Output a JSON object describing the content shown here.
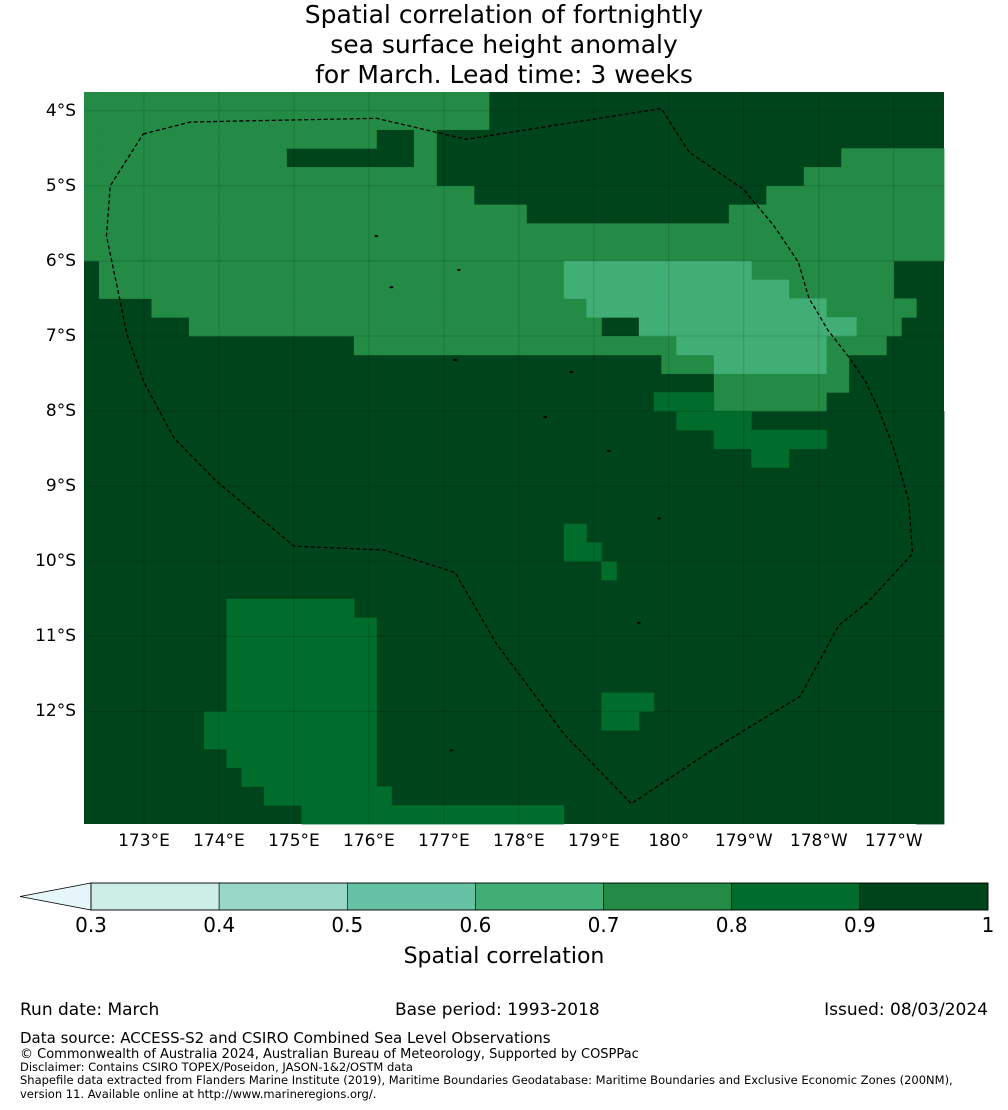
{
  "title_lines": [
    "Spatial correlation of fortnightly",
    "sea surface height anomaly",
    "for March. Lead time: 3 weeks"
  ],
  "map": {
    "lat_labels": [
      "4°S",
      "5°S",
      "6°S",
      "7°S",
      "8°S",
      "9°S",
      "10°S",
      "11°S",
      "12°S"
    ],
    "lon_labels": [
      "173°E",
      "174°E",
      "175°E",
      "176°E",
      "177°E",
      "178°E",
      "179°E",
      "180°",
      "179°W",
      "178°W",
      "177°W"
    ],
    "lat_range": [
      -13.5,
      -3.75
    ],
    "lon_range": [
      172.2,
      183.67
    ],
    "boundary_style": "black dashed line",
    "eez_boundary": [
      [
        172.99,
        -4.31
      ],
      [
        173.62,
        -4.15
      ],
      [
        176.1,
        -4.1
      ],
      [
        177.3,
        -4.38
      ],
      [
        179.9,
        -3.97
      ],
      [
        180.27,
        -4.55
      ],
      [
        181.0,
        -5.05
      ],
      [
        181.4,
        -5.53
      ],
      [
        181.73,
        -6.02
      ],
      [
        181.87,
        -6.5
      ],
      [
        181.95,
        -6.63
      ],
      [
        182.12,
        -6.92
      ],
      [
        182.4,
        -7.28
      ],
      [
        182.62,
        -7.6
      ],
      [
        182.8,
        -7.98
      ],
      [
        183.0,
        -8.5
      ],
      [
        183.2,
        -9.2
      ],
      [
        183.25,
        -9.9
      ],
      [
        182.65,
        -10.55
      ],
      [
        182.27,
        -10.85
      ],
      [
        181.75,
        -11.8
      ],
      [
        180.6,
        -12.5
      ],
      [
        179.5,
        -13.23
      ],
      [
        178.6,
        -12.3
      ],
      [
        177.7,
        -11.1
      ],
      [
        177.15,
        -10.15
      ],
      [
        176.2,
        -9.85
      ],
      [
        175.0,
        -9.8
      ],
      [
        173.95,
        -8.92
      ],
      [
        173.4,
        -8.36
      ],
      [
        173.0,
        -7.62
      ],
      [
        172.77,
        -6.97
      ],
      [
        172.7,
        -6.62
      ],
      [
        172.57,
        -6.0
      ],
      [
        172.5,
        -5.67
      ],
      [
        172.55,
        -5.0
      ],
      [
        172.99,
        -4.31
      ]
    ],
    "islands": [
      [
        176.1,
        -5.67
      ],
      [
        176.3,
        -6.35
      ],
      [
        177.2,
        -6.12
      ],
      [
        177.15,
        -7.32
      ],
      [
        178.7,
        -7.48
      ],
      [
        178.35,
        -8.08
      ],
      [
        179.2,
        -8.53
      ],
      [
        179.87,
        -9.43
      ],
      [
        179.6,
        -10.82
      ],
      [
        177.1,
        -12.52
      ]
    ]
  },
  "chart_data": {
    "type": "heatmap",
    "levels": [
      0.3,
      0.4,
      0.5,
      0.6,
      0.7,
      0.8,
      0.9,
      1.0
    ],
    "level_colors": [
      "#cceee6",
      "#99d7c8",
      "#66c2a4",
      "#41ae76",
      "#238b45",
      "#006d2c",
      "#00441b"
    ],
    "under_color": "#e5f5f9",
    "grid_resolution_deg": 0.25,
    "lon_origin": 172.2,
    "lat_origin": -3.75,
    "default_level": 6,
    "regions": [
      {
        "level": 4,
        "lon": [
          172.2,
          177.6
        ],
        "lat": [
          -3.75,
          -4.0
        ]
      },
      {
        "level": 4,
        "lon": [
          172.2,
          177.6
        ],
        "lat": [
          -4.0,
          -4.25
        ]
      },
      {
        "level": 4,
        "lon": [
          172.2,
          172.4
        ],
        "lat": [
          -4.25,
          -4.75
        ]
      },
      {
        "level": 4,
        "lon": [
          172.4,
          176.1
        ],
        "lat": [
          -4.25,
          -4.5
        ]
      },
      {
        "level": 4,
        "lon": [
          176.6,
          176.9
        ],
        "lat": [
          -4.25,
          -4.5
        ]
      },
      {
        "level": 4,
        "lon": [
          172.4,
          174.9
        ],
        "lat": [
          -4.5,
          -4.75
        ]
      },
      {
        "level": 4,
        "lon": [
          176.6,
          176.9
        ],
        "lat": [
          -4.5,
          -4.75
        ]
      },
      {
        "level": 4,
        "lon": [
          172.2,
          176.9
        ],
        "lat": [
          -4.75,
          -5.0
        ]
      },
      {
        "level": 4,
        "lon": [
          172.2,
          177.4
        ],
        "lat": [
          -5.0,
          -5.25
        ]
      },
      {
        "level": 4,
        "lon": [
          172.2,
          178.1
        ],
        "lat": [
          -5.25,
          -5.5
        ]
      },
      {
        "level": 4,
        "lon": [
          172.2,
          183.67
        ],
        "lat": [
          -5.5,
          -6.0
        ]
      },
      {
        "level": 4,
        "lon": [
          182.3,
          183.67
        ],
        "lat": [
          -4.5,
          -4.75
        ]
      },
      {
        "level": 4,
        "lon": [
          181.8,
          183.67
        ],
        "lat": [
          -4.75,
          -5.0
        ]
      },
      {
        "level": 4,
        "lon": [
          181.3,
          183.67
        ],
        "lat": [
          -5.0,
          -5.25
        ]
      },
      {
        "level": 4,
        "lon": [
          180.8,
          183.67
        ],
        "lat": [
          -5.25,
          -5.5
        ]
      },
      {
        "level": 4,
        "lon": [
          172.4,
          178.6
        ],
        "lat": [
          -6.0,
          -6.25
        ]
      },
      {
        "level": 4,
        "lon": [
          172.4,
          178.6
        ],
        "lat": [
          -6.25,
          -6.5
        ]
      },
      {
        "level": 4,
        "lon": [
          173.1,
          178.9
        ],
        "lat": [
          -6.5,
          -6.75
        ]
      },
      {
        "level": 4,
        "lon": [
          173.6,
          179.1
        ],
        "lat": [
          -6.75,
          -7.0
        ]
      },
      {
        "level": 4,
        "lon": [
          175.8,
          179.6
        ],
        "lat": [
          -7.0,
          -7.25
        ]
      },
      {
        "level": 4,
        "lon": [
          181.1,
          183.0
        ],
        "lat": [
          -6.0,
          -6.25
        ]
      },
      {
        "level": 4,
        "lon": [
          181.6,
          183.0
        ],
        "lat": [
          -6.25,
          -6.5
        ]
      },
      {
        "level": 4,
        "lon": [
          182.1,
          183.3
        ],
        "lat": [
          -6.5,
          -6.75
        ]
      },
      {
        "level": 4,
        "lon": [
          182.5,
          183.1
        ],
        "lat": [
          -6.75,
          -7.0
        ]
      },
      {
        "level": 4,
        "lon": [
          179.6,
          180.1
        ],
        "lat": [
          -7.0,
          -7.25
        ]
      },
      {
        "level": 4,
        "lon": [
          179.9,
          180.6
        ],
        "lat": [
          -7.25,
          -7.5
        ]
      },
      {
        "level": 4,
        "lon": [
          182.1,
          182.9
        ],
        "lat": [
          -7.0,
          -7.25
        ]
      },
      {
        "level": 4,
        "lon": [
          182.1,
          182.4
        ],
        "lat": [
          -7.25,
          -7.5
        ]
      },
      {
        "level": 4,
        "lon": [
          180.6,
          182.4
        ],
        "lat": [
          -7.5,
          -7.75
        ]
      },
      {
        "level": 4,
        "lon": [
          180.6,
          182.1
        ],
        "lat": [
          -7.75,
          -8.0
        ]
      },
      {
        "level": 3,
        "lon": [
          178.6,
          181.1
        ],
        "lat": [
          -6.0,
          -6.25
        ]
      },
      {
        "level": 3,
        "lon": [
          178.6,
          181.6
        ],
        "lat": [
          -6.25,
          -6.5
        ]
      },
      {
        "level": 3,
        "lon": [
          178.9,
          182.1
        ],
        "lat": [
          -6.5,
          -6.75
        ]
      },
      {
        "level": 3,
        "lon": [
          179.6,
          182.5
        ],
        "lat": [
          -6.75,
          -7.0
        ]
      },
      {
        "level": 3,
        "lon": [
          180.1,
          182.1
        ],
        "lat": [
          -7.0,
          -7.25
        ]
      },
      {
        "level": 3,
        "lon": [
          180.6,
          182.1
        ],
        "lat": [
          -7.25,
          -7.5
        ]
      },
      {
        "level": 6,
        "lon": [
          172.2,
          172.6
        ],
        "lat": [
          -7.25,
          -7.5
        ]
      },
      {
        "level": 6,
        "lon": [
          172.2,
          173.6
        ],
        "lat": [
          -7.5,
          -7.75
        ]
      },
      {
        "level": 6,
        "lon": [
          172.2,
          174.1
        ],
        "lat": [
          -7.75,
          -8.0
        ]
      },
      {
        "level": 6,
        "lon": [
          183.3,
          183.67
        ],
        "lat": [
          -8.0,
          -13.5
        ]
      },
      {
        "level": 5,
        "lon": [
          178.6,
          178.9
        ],
        "lat": [
          -9.5,
          -9.75
        ]
      },
      {
        "level": 5,
        "lon": [
          178.6,
          179.1
        ],
        "lat": [
          -9.75,
          -10.0
        ]
      },
      {
        "level": 5,
        "lon": [
          179.1,
          179.3
        ],
        "lat": [
          -10.0,
          -10.25
        ]
      },
      {
        "level": 5,
        "lon": [
          174.1,
          175.8
        ],
        "lat": [
          -10.5,
          -10.75
        ]
      },
      {
        "level": 5,
        "lon": [
          174.1,
          176.1
        ],
        "lat": [
          -10.75,
          -11.0
        ]
      },
      {
        "level": 5,
        "lon": [
          174.1,
          176.1
        ],
        "lat": [
          -11.0,
          -12.0
        ]
      },
      {
        "level": 5,
        "lon": [
          173.8,
          176.1
        ],
        "lat": [
          -12.0,
          -12.5
        ]
      },
      {
        "level": 5,
        "lon": [
          174.1,
          176.1
        ],
        "lat": [
          -12.5,
          -12.75
        ]
      },
      {
        "level": 5,
        "lon": [
          174.3,
          176.1
        ],
        "lat": [
          -12.75,
          -13.0
        ]
      },
      {
        "level": 5,
        "lon": [
          174.6,
          176.3
        ],
        "lat": [
          -13.0,
          -13.25
        ]
      },
      {
        "level": 5,
        "lon": [
          175.1,
          178.6
        ],
        "lat": [
          -13.25,
          -13.5
        ]
      },
      {
        "level": 5,
        "lon": [
          179.1,
          179.8
        ],
        "lat": [
          -11.75,
          -12.0
        ]
      },
      {
        "level": 5,
        "lon": [
          179.1,
          179.6
        ],
        "lat": [
          -12.0,
          -12.25
        ]
      },
      {
        "level": 5,
        "lon": [
          179.8,
          180.6
        ],
        "lat": [
          -7.75,
          -8.0
        ]
      },
      {
        "level": 5,
        "lon": [
          180.1,
          181.1
        ],
        "lat": [
          -8.0,
          -8.25
        ]
      },
      {
        "level": 5,
        "lon": [
          180.6,
          182.1
        ],
        "lat": [
          -8.25,
          -8.5
        ]
      },
      {
        "level": 5,
        "lon": [
          181.1,
          181.6
        ],
        "lat": [
          -8.5,
          -8.75
        ]
      }
    ]
  },
  "colorbar": {
    "tick_labels": [
      "0.3",
      "0.4",
      "0.5",
      "0.6",
      "0.7",
      "0.8",
      "0.9",
      "1"
    ],
    "label": "Spatial correlation"
  },
  "meta": {
    "run_date": "Run date: March",
    "base_period": "Base period: 1993-2018",
    "issued": "Issued: 08/03/2024"
  },
  "footer": {
    "data_source": "Data source: ACCESS-S2 and CSIRO Combined Sea Level Observations",
    "copyright": "© Commonwealth of Australia 2024, Australian Bureau of Meteorology, Supported by COSPPac",
    "disclaimer": "Disclaimer: Contains CSIRO TOPEX/Poseidon, JASON-1&2/OSTM data",
    "shapefile_1": "Shapefile data extracted from Flanders Marine Institute (2019), Maritime Boundaries Geodatabase: Maritime Boundaries and Exclusive Economic Zones (200NM),",
    "shapefile_2": "version 11. Available online at http://www.marineregions.org/."
  }
}
